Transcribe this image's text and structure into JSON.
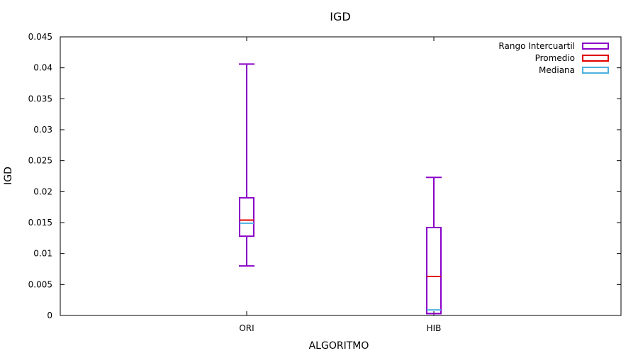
{
  "chart_data": {
    "type": "boxplot",
    "title": "IGD",
    "xlabel": "ALGORITMO",
    "ylabel": "IGD",
    "ylim": [
      0,
      0.045
    ],
    "yticks": [
      "0",
      "0.005",
      "0.01",
      "0.015",
      "0.02",
      "0.025",
      "0.03",
      "0.035",
      "0.04",
      "0.045"
    ],
    "ytick_values": [
      0,
      0.005,
      0.01,
      0.015,
      0.02,
      0.025,
      0.03,
      0.035,
      0.04,
      0.045
    ],
    "categories": [
      "ORI",
      "HIB"
    ],
    "boxes": [
      {
        "category": "ORI",
        "min": 0.008,
        "q1": 0.0128,
        "median": 0.0149,
        "mean": 0.0154,
        "q3": 0.019,
        "max": 0.0406
      },
      {
        "category": "HIB",
        "min": 0.0003,
        "q1": 0.0003,
        "median": 0.0009,
        "mean": 0.0063,
        "q3": 0.0142,
        "max": 0.0223
      }
    ],
    "legend": {
      "position": "top-right",
      "entries": [
        {
          "label": "Rango Intercuartil",
          "color": "#8a00c8"
        },
        {
          "label": "Promedio",
          "color": "#e00000"
        },
        {
          "label": "Mediana",
          "color": "#4db1e0"
        }
      ]
    },
    "grid": false,
    "colors": {
      "box": "#8a00c8",
      "mean": "#e00000",
      "median": "#4db1e0"
    }
  }
}
